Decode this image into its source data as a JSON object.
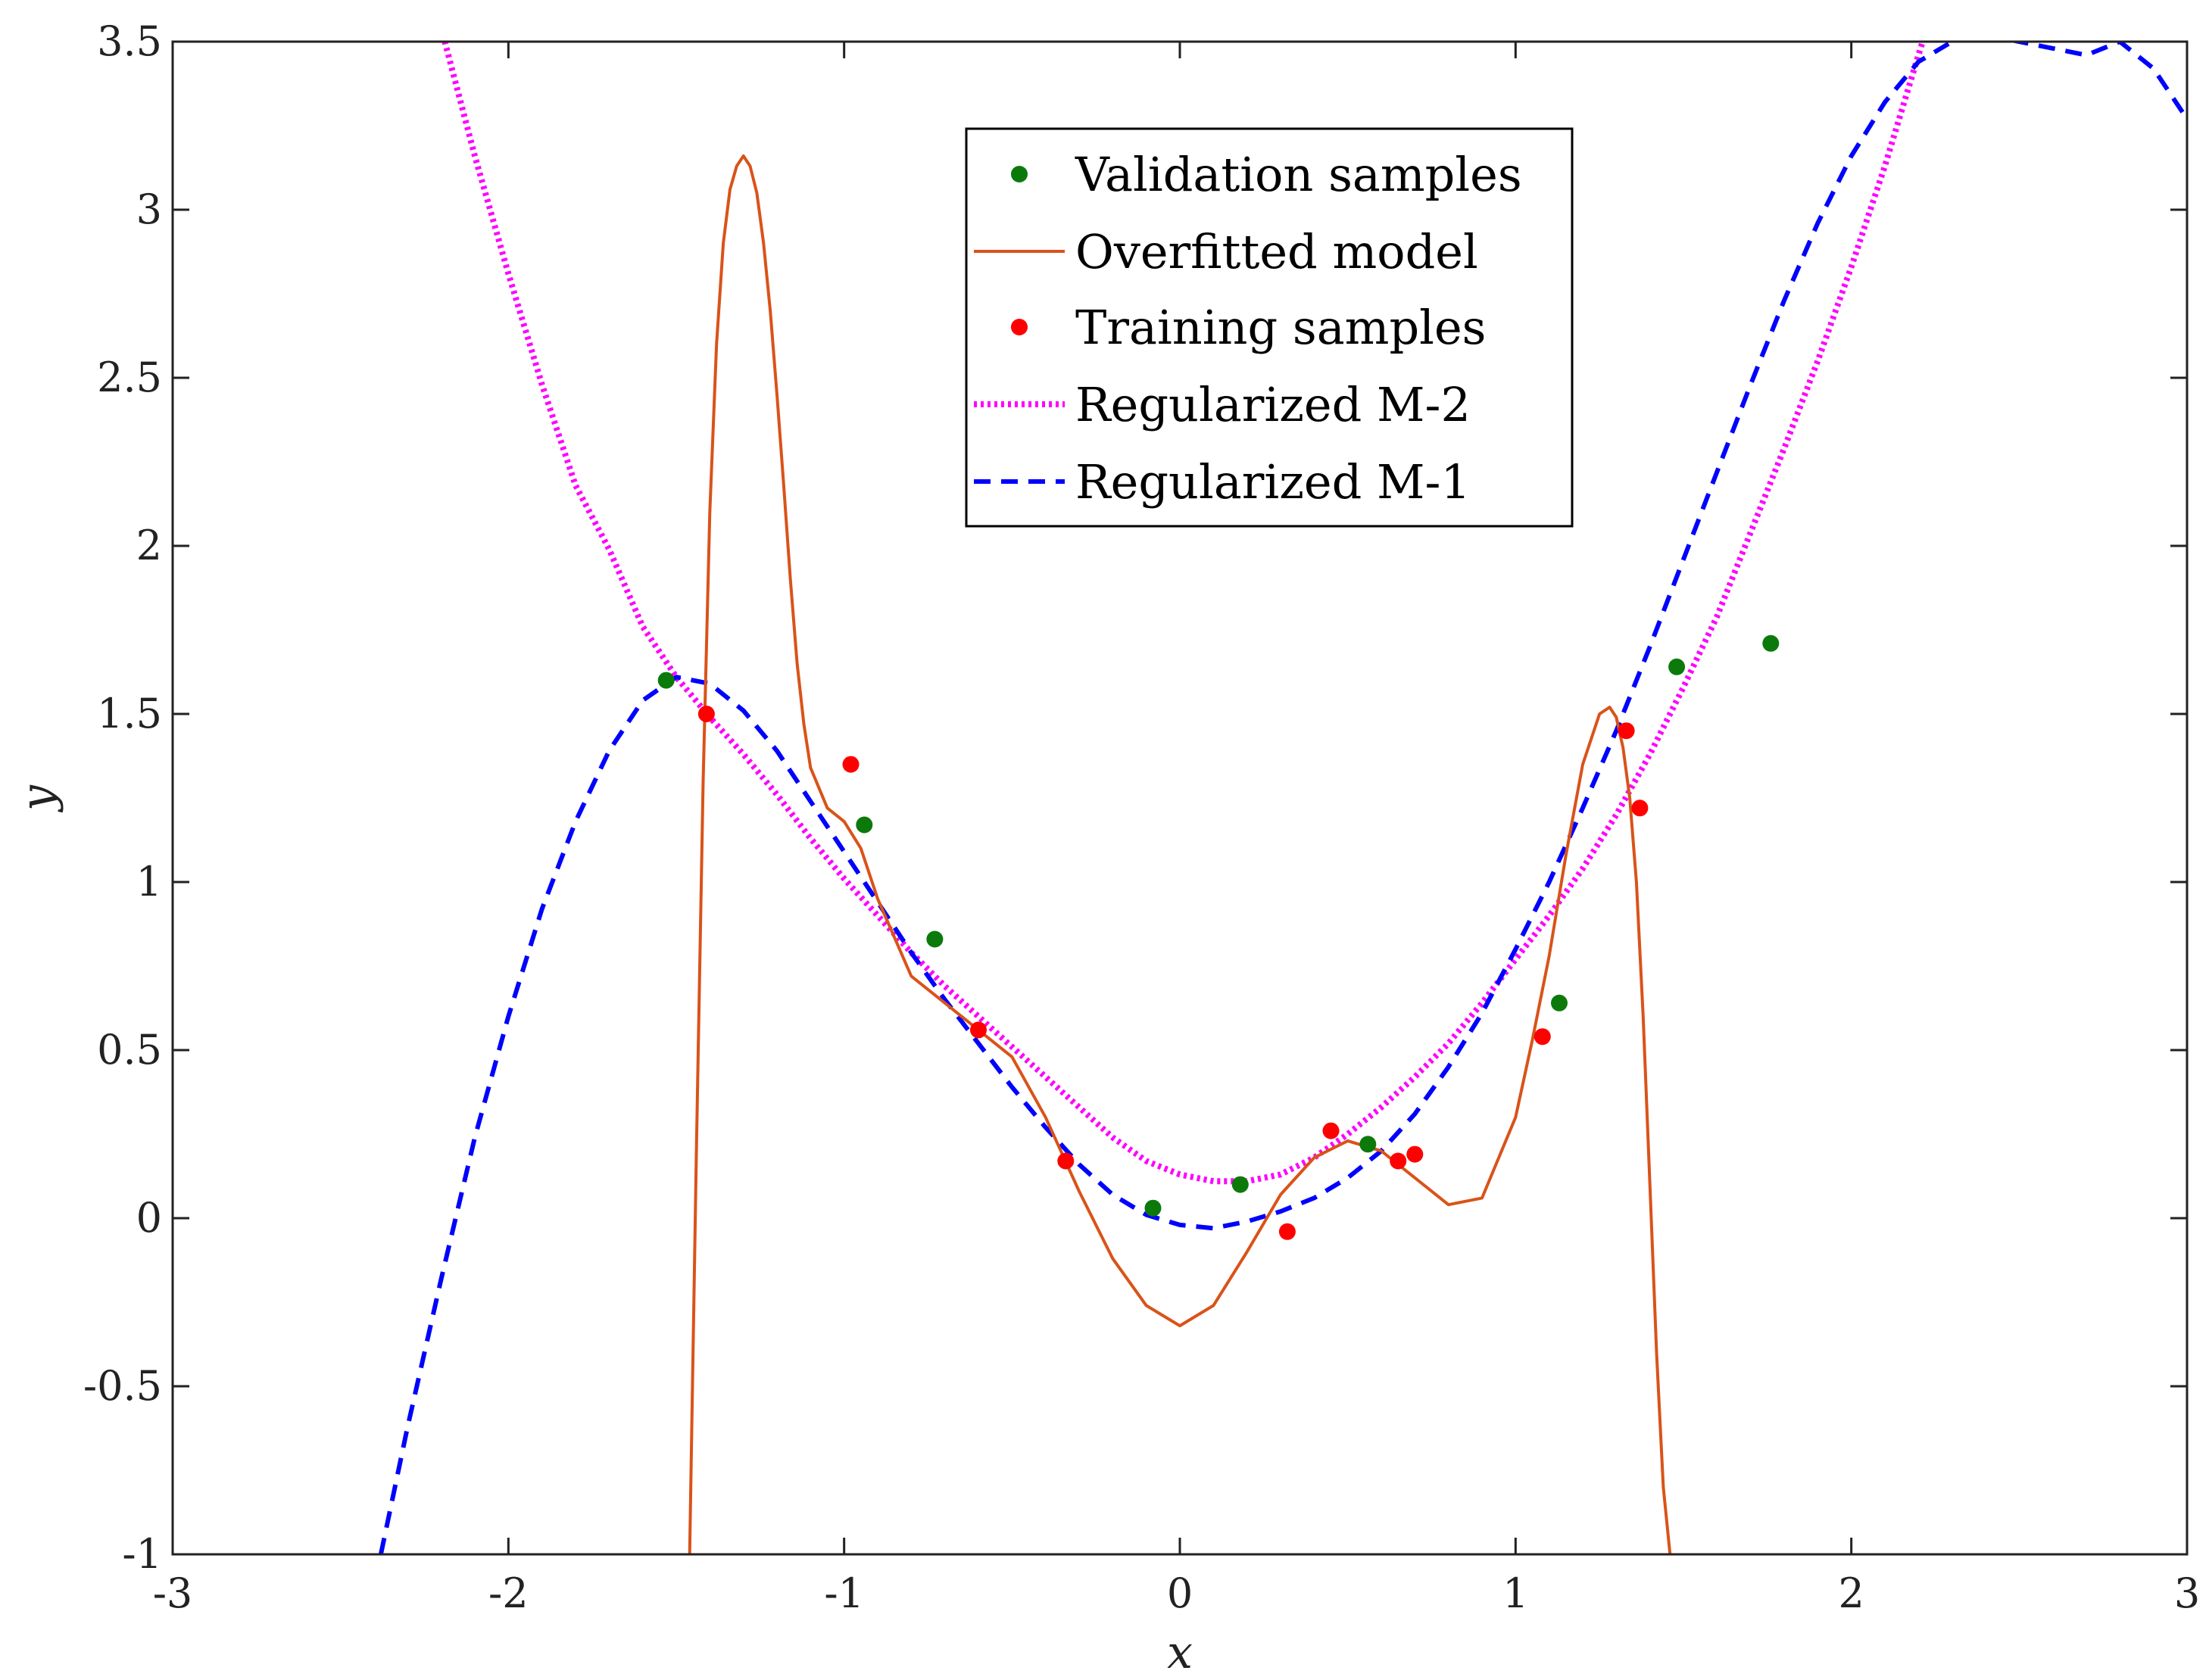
{
  "chart_data": {
    "type": "line",
    "title": "",
    "xlabel": "x",
    "ylabel": "y",
    "xlim": [
      -3,
      3
    ],
    "ylim": [
      -1,
      3.5
    ],
    "xticks": [
      -3,
      -2,
      -1,
      0,
      1,
      2,
      3
    ],
    "xtick_labels": [
      "-3",
      "-2",
      "-1",
      "0",
      "1",
      "2",
      "3"
    ],
    "yticks": [
      -1,
      -0.5,
      0,
      0.5,
      1,
      1.5,
      2,
      2.5,
      3,
      3.5
    ],
    "ytick_labels": [
      "-1",
      "-0.5",
      "0",
      "0.5",
      "1",
      "1.5",
      "2",
      "2.5",
      "3",
      "3.5"
    ],
    "grid": false,
    "legend_position": "top-center",
    "legend": [
      "Validation samples",
      "Overfitted model",
      "Training samples",
      "Regularized M-2",
      "Regularized M-1"
    ],
    "series": [
      {
        "name": "Validation samples",
        "kind": "scatter",
        "color": "#0b7a0b",
        "x": [
          -1.53,
          -0.94,
          -0.73,
          -0.08,
          0.18,
          0.56,
          1.13,
          1.48,
          1.76
        ],
        "y": [
          1.6,
          1.17,
          0.83,
          0.03,
          0.1,
          0.22,
          0.64,
          1.64,
          1.71
        ]
      },
      {
        "name": "Training samples",
        "kind": "scatter",
        "color": "#ff0000",
        "x": [
          -1.41,
          -0.98,
          -0.6,
          -0.34,
          0.32,
          0.45,
          0.65,
          0.7,
          1.08,
          1.33,
          1.37
        ],
        "y": [
          1.5,
          1.35,
          0.56,
          0.17,
          -0.04,
          0.26,
          0.17,
          0.19,
          0.54,
          1.45,
          1.22
        ]
      },
      {
        "name": "Regularized M-2",
        "kind": "line",
        "style": "dotted",
        "color": "#ff00ff",
        "x": [
          -2.2,
          -2.1,
          -2.0,
          -1.9,
          -1.8,
          -1.7,
          -1.6,
          -1.5,
          -1.4,
          -1.3,
          -1.2,
          -1.1,
          -1.0,
          -0.9,
          -0.8,
          -0.7,
          -0.6,
          -0.5,
          -0.4,
          -0.3,
          -0.2,
          -0.1,
          0.0,
          0.1,
          0.2,
          0.3,
          0.4,
          0.5,
          0.6,
          0.7,
          0.8,
          0.9,
          1.0,
          1.1,
          1.2,
          1.3,
          1.4,
          1.5,
          1.6,
          1.7,
          1.8,
          1.9,
          2.0,
          2.1,
          2.2,
          2.25
        ],
        "y": [
          3.54,
          3.16,
          2.81,
          2.48,
          2.18,
          1.99,
          1.76,
          1.61,
          1.49,
          1.38,
          1.26,
          1.13,
          1.01,
          0.9,
          0.79,
          0.69,
          0.6,
          0.51,
          0.42,
          0.33,
          0.24,
          0.17,
          0.13,
          0.11,
          0.11,
          0.13,
          0.18,
          0.25,
          0.33,
          0.42,
          0.52,
          0.64,
          0.77,
          0.9,
          1.04,
          1.2,
          1.38,
          1.58,
          1.79,
          2.04,
          2.29,
          2.55,
          2.83,
          3.13,
          3.46,
          3.62
        ]
      },
      {
        "name": "Regularized M-1",
        "kind": "line",
        "style": "dashed",
        "color": "#0000ff",
        "x": [
          -2.38,
          -2.3,
          -2.2,
          -2.1,
          -2.0,
          -1.9,
          -1.8,
          -1.7,
          -1.6,
          -1.5,
          -1.4,
          -1.3,
          -1.2,
          -1.1,
          -1.0,
          -0.9,
          -0.8,
          -0.7,
          -0.6,
          -0.5,
          -0.4,
          -0.3,
          -0.2,
          -0.1,
          0.0,
          0.1,
          0.2,
          0.3,
          0.4,
          0.5,
          0.6,
          0.7,
          0.8,
          0.9,
          1.0,
          1.1,
          1.2,
          1.3,
          1.4,
          1.5,
          1.6,
          1.7,
          1.8,
          1.9,
          2.0,
          2.1,
          2.2,
          2.3,
          2.4,
          2.5,
          2.6,
          2.7,
          2.8,
          2.9,
          3.0
        ],
        "y": [
          -1.0,
          -0.62,
          -0.18,
          0.24,
          0.6,
          0.92,
          1.18,
          1.39,
          1.54,
          1.61,
          1.59,
          1.51,
          1.39,
          1.24,
          1.09,
          0.94,
          0.79,
          0.65,
          0.52,
          0.39,
          0.27,
          0.16,
          0.07,
          0.01,
          -0.02,
          -0.03,
          -0.01,
          0.02,
          0.06,
          0.12,
          0.2,
          0.31,
          0.45,
          0.61,
          0.8,
          1.0,
          1.22,
          1.45,
          1.7,
          1.96,
          2.22,
          2.48,
          2.73,
          2.96,
          3.16,
          3.32,
          3.44,
          3.5,
          3.52,
          3.5,
          3.48,
          3.46,
          3.5,
          3.42,
          3.27
        ]
      },
      {
        "name": "Overfitted model",
        "kind": "line",
        "style": "solid",
        "color": "#d95319",
        "x": [
          -1.46,
          -1.44,
          -1.42,
          -1.4,
          -1.38,
          -1.36,
          -1.34,
          -1.32,
          -1.3,
          -1.28,
          -1.26,
          -1.24,
          -1.22,
          -1.2,
          -1.18,
          -1.16,
          -1.14,
          -1.12,
          -1.1,
          -1.05,
          -1.0,
          -0.95,
          -0.9,
          -0.8,
          -0.7,
          -0.6,
          -0.5,
          -0.4,
          -0.3,
          -0.2,
          -0.1,
          0.0,
          0.1,
          0.2,
          0.3,
          0.4,
          0.5,
          0.6,
          0.7,
          0.8,
          0.9,
          1.0,
          1.05,
          1.1,
          1.15,
          1.2,
          1.25,
          1.28,
          1.3,
          1.32,
          1.34,
          1.36,
          1.38,
          1.4,
          1.42,
          1.44,
          1.46
        ],
        "y": [
          -1.0,
          0.2,
          1.3,
          2.1,
          2.6,
          2.9,
          3.06,
          3.13,
          3.16,
          3.13,
          3.05,
          2.9,
          2.7,
          2.45,
          2.18,
          1.9,
          1.65,
          1.47,
          1.34,
          1.22,
          1.18,
          1.1,
          0.95,
          0.72,
          0.64,
          0.56,
          0.48,
          0.3,
          0.08,
          -0.12,
          -0.26,
          -0.32,
          -0.26,
          -0.1,
          0.07,
          0.18,
          0.23,
          0.2,
          0.12,
          0.04,
          0.06,
          0.3,
          0.53,
          0.78,
          1.08,
          1.35,
          1.5,
          1.52,
          1.49,
          1.4,
          1.25,
          1.0,
          0.6,
          0.1,
          -0.4,
          -0.8,
          -1.0
        ]
      }
    ]
  }
}
